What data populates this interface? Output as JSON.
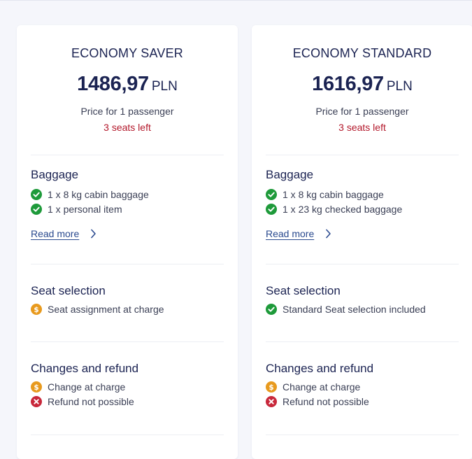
{
  "fares": [
    {
      "name": "ECONOMY SAVER",
      "price": "1486,97",
      "currency": "PLN",
      "per_passenger": "Price for 1 passenger",
      "seats_left": "3 seats left",
      "baggage": {
        "title": "Baggage",
        "items": [
          {
            "text": "1 x 8 kg cabin baggage",
            "status": "included"
          },
          {
            "text": "1 x personal item",
            "status": "included"
          }
        ],
        "read_more": "Read more"
      },
      "seat_selection": {
        "title": "Seat selection",
        "items": [
          {
            "text": "Seat assignment at charge",
            "status": "charge"
          }
        ]
      },
      "changes_refund": {
        "title": "Changes and refund",
        "items": [
          {
            "text": "Change at charge",
            "status": "charge"
          },
          {
            "text": "Refund not possible",
            "status": "not-possible"
          }
        ]
      }
    },
    {
      "name": "ECONOMY STANDARD",
      "price": "1616,97",
      "currency": "PLN",
      "per_passenger": "Price for 1 passenger",
      "seats_left": "3 seats left",
      "baggage": {
        "title": "Baggage",
        "items": [
          {
            "text": "1 x 8 kg cabin baggage",
            "status": "included"
          },
          {
            "text": "1 x 23 kg checked baggage",
            "status": "included"
          }
        ],
        "read_more": "Read more"
      },
      "seat_selection": {
        "title": "Seat selection",
        "items": [
          {
            "text": "Standard Seat selection included",
            "status": "included"
          }
        ]
      },
      "changes_refund": {
        "title": "Changes and refund",
        "items": [
          {
            "text": "Change at charge",
            "status": "charge"
          },
          {
            "text": "Refund not possible",
            "status": "not-possible"
          }
        ]
      }
    }
  ],
  "colors": {
    "included": "#1e9a3a",
    "charge": "#e89a1e",
    "not_possible": "#c8283b",
    "seats_left": "#b3182b",
    "heading": "#1b2352",
    "link": "#2a4a8f"
  },
  "icons": {
    "included": "check-circle-icon",
    "charge": "dollar-coin-icon",
    "not-possible": "x-circle-icon",
    "read_more": "chevron-right-icon"
  }
}
